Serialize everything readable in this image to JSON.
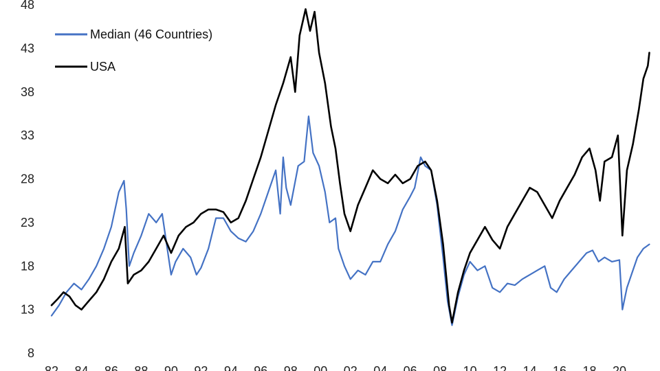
{
  "chart_data": {
    "type": "line",
    "title": "",
    "xlabel": "",
    "ylabel": "",
    "xlim": [
      1982,
      2021
    ],
    "ylim": [
      8,
      48
    ],
    "y_ticks": [
      "8",
      "13",
      "18",
      "23",
      "28",
      "33",
      "38",
      "43",
      "48"
    ],
    "x_ticks": [
      "82",
      "84",
      "86",
      "88",
      "90",
      "92",
      "94",
      "96",
      "98",
      "00",
      "02",
      "04",
      "06",
      "08",
      "10",
      "12",
      "14",
      "16",
      "18",
      "20"
    ],
    "grid": false,
    "legend": {
      "placement": "top-left"
    },
    "series": [
      {
        "name": "Median (46 Countries)",
        "color": "#4472C4",
        "points": [
          [
            1982.0,
            12.3
          ],
          [
            1982.5,
            13.5
          ],
          [
            1983.0,
            15.0
          ],
          [
            1983.5,
            16.0
          ],
          [
            1984.0,
            15.3
          ],
          [
            1984.5,
            16.5
          ],
          [
            1985.0,
            18.0
          ],
          [
            1985.5,
            20.0
          ],
          [
            1986.0,
            22.5
          ],
          [
            1986.5,
            26.5
          ],
          [
            1986.85,
            27.8
          ],
          [
            1987.0,
            24.5
          ],
          [
            1987.2,
            18.0
          ],
          [
            1987.5,
            19.5
          ],
          [
            1988.0,
            21.5
          ],
          [
            1988.5,
            24.0
          ],
          [
            1989.0,
            23.0
          ],
          [
            1989.4,
            24.0
          ],
          [
            1989.7,
            20.5
          ],
          [
            1990.0,
            17.0
          ],
          [
            1990.3,
            18.5
          ],
          [
            1990.8,
            20.0
          ],
          [
            1991.3,
            19.0
          ],
          [
            1991.7,
            17.0
          ],
          [
            1992.0,
            17.8
          ],
          [
            1992.5,
            20.0
          ],
          [
            1993.0,
            23.5
          ],
          [
            1993.5,
            23.5
          ],
          [
            1994.0,
            22.0
          ],
          [
            1994.5,
            21.2
          ],
          [
            1995.0,
            20.8
          ],
          [
            1995.5,
            22.0
          ],
          [
            1996.0,
            24.0
          ],
          [
            1996.5,
            26.5
          ],
          [
            1997.0,
            29.0
          ],
          [
            1997.3,
            24.0
          ],
          [
            1997.5,
            30.5
          ],
          [
            1997.7,
            27.0
          ],
          [
            1998.0,
            25.0
          ],
          [
            1998.5,
            29.5
          ],
          [
            1998.9,
            30.0
          ],
          [
            1999.2,
            35.2
          ],
          [
            1999.5,
            31.0
          ],
          [
            1999.9,
            29.5
          ],
          [
            2000.3,
            26.5
          ],
          [
            2000.6,
            23.0
          ],
          [
            2001.0,
            23.5
          ],
          [
            2001.2,
            20.0
          ],
          [
            2001.6,
            18.0
          ],
          [
            2002.0,
            16.5
          ],
          [
            2002.5,
            17.5
          ],
          [
            2003.0,
            17.0
          ],
          [
            2003.5,
            18.5
          ],
          [
            2004.0,
            18.5
          ],
          [
            2004.5,
            20.5
          ],
          [
            2005.0,
            22.0
          ],
          [
            2005.5,
            24.5
          ],
          [
            2006.0,
            26.0
          ],
          [
            2006.3,
            27.0
          ],
          [
            2006.7,
            30.5
          ],
          [
            2007.0,
            29.5
          ],
          [
            2007.4,
            29.0
          ],
          [
            2007.8,
            25.0
          ],
          [
            2008.2,
            19.0
          ],
          [
            2008.5,
            14.0
          ],
          [
            2008.8,
            11.2
          ],
          [
            2009.2,
            14.5
          ],
          [
            2009.6,
            17.0
          ],
          [
            2010.0,
            18.5
          ],
          [
            2010.5,
            17.5
          ],
          [
            2011.0,
            18.0
          ],
          [
            2011.5,
            15.5
          ],
          [
            2012.0,
            15.0
          ],
          [
            2012.5,
            16.0
          ],
          [
            2013.0,
            15.8
          ],
          [
            2013.5,
            16.5
          ],
          [
            2014.0,
            17.0
          ],
          [
            2014.5,
            17.5
          ],
          [
            2015.0,
            18.0
          ],
          [
            2015.4,
            15.5
          ],
          [
            2015.8,
            15.0
          ],
          [
            2016.3,
            16.5
          ],
          [
            2016.8,
            17.5
          ],
          [
            2017.3,
            18.5
          ],
          [
            2017.8,
            19.5
          ],
          [
            2018.2,
            19.8
          ],
          [
            2018.6,
            18.5
          ],
          [
            2019.0,
            19.0
          ],
          [
            2019.5,
            18.5
          ],
          [
            2020.0,
            18.7
          ],
          [
            2020.2,
            13.0
          ],
          [
            2020.5,
            15.5
          ],
          [
            2020.8,
            17.0
          ],
          [
            2021.2,
            19.0
          ],
          [
            2021.6,
            20.0
          ],
          [
            2022.0,
            20.5
          ]
        ]
      },
      {
        "name": "USA",
        "color": "#000000",
        "points": [
          [
            1982.0,
            13.5
          ],
          [
            1982.4,
            14.2
          ],
          [
            1982.8,
            15.0
          ],
          [
            1983.2,
            14.5
          ],
          [
            1983.6,
            13.5
          ],
          [
            1984.0,
            13.0
          ],
          [
            1984.5,
            14.0
          ],
          [
            1985.0,
            15.0
          ],
          [
            1985.5,
            16.5
          ],
          [
            1986.0,
            18.5
          ],
          [
            1986.5,
            20.0
          ],
          [
            1986.9,
            22.5
          ],
          [
            1987.1,
            16.0
          ],
          [
            1987.5,
            17.0
          ],
          [
            1988.0,
            17.5
          ],
          [
            1988.5,
            18.5
          ],
          [
            1989.0,
            20.0
          ],
          [
            1989.5,
            21.5
          ],
          [
            1990.0,
            19.5
          ],
          [
            1990.5,
            21.5
          ],
          [
            1991.0,
            22.5
          ],
          [
            1991.5,
            23.0
          ],
          [
            1992.0,
            24.0
          ],
          [
            1992.5,
            24.5
          ],
          [
            1993.0,
            24.5
          ],
          [
            1993.5,
            24.2
          ],
          [
            1994.0,
            23.0
          ],
          [
            1994.5,
            23.5
          ],
          [
            1995.0,
            25.5
          ],
          [
            1995.5,
            28.0
          ],
          [
            1996.0,
            30.5
          ],
          [
            1996.5,
            33.5
          ],
          [
            1997.0,
            36.5
          ],
          [
            1997.5,
            39.0
          ],
          [
            1998.0,
            42.0
          ],
          [
            1998.3,
            38.0
          ],
          [
            1998.6,
            44.5
          ],
          [
            1999.0,
            47.5
          ],
          [
            1999.3,
            45.0
          ],
          [
            1999.6,
            47.2
          ],
          [
            1999.9,
            42.5
          ],
          [
            2000.3,
            39.0
          ],
          [
            2000.7,
            34.0
          ],
          [
            2001.0,
            31.5
          ],
          [
            2001.3,
            27.5
          ],
          [
            2001.6,
            24.0
          ],
          [
            2002.0,
            22.0
          ],
          [
            2002.5,
            25.0
          ],
          [
            2003.0,
            27.0
          ],
          [
            2003.5,
            29.0
          ],
          [
            2004.0,
            28.0
          ],
          [
            2004.5,
            27.5
          ],
          [
            2005.0,
            28.5
          ],
          [
            2005.5,
            27.5
          ],
          [
            2006.0,
            28.0
          ],
          [
            2006.5,
            29.5
          ],
          [
            2007.0,
            30.0
          ],
          [
            2007.4,
            29.0
          ],
          [
            2007.8,
            25.5
          ],
          [
            2008.2,
            20.5
          ],
          [
            2008.6,
            13.5
          ],
          [
            2008.8,
            11.5
          ],
          [
            2009.2,
            15.0
          ],
          [
            2009.6,
            17.5
          ],
          [
            2010.0,
            19.5
          ],
          [
            2010.5,
            21.0
          ],
          [
            2011.0,
            22.5
          ],
          [
            2011.5,
            21.0
          ],
          [
            2012.0,
            20.0
          ],
          [
            2012.5,
            22.5
          ],
          [
            2013.0,
            24.0
          ],
          [
            2013.5,
            25.5
          ],
          [
            2014.0,
            27.0
          ],
          [
            2014.5,
            26.5
          ],
          [
            2015.0,
            25.0
          ],
          [
            2015.5,
            23.5
          ],
          [
            2016.0,
            25.5
          ],
          [
            2016.5,
            27.0
          ],
          [
            2017.0,
            28.5
          ],
          [
            2017.5,
            30.5
          ],
          [
            2018.0,
            31.5
          ],
          [
            2018.4,
            29.0
          ],
          [
            2018.7,
            25.5
          ],
          [
            2019.0,
            30.0
          ],
          [
            2019.5,
            30.5
          ],
          [
            2019.9,
            33.0
          ],
          [
            2020.2,
            21.5
          ],
          [
            2020.5,
            29.0
          ],
          [
            2020.9,
            32.0
          ],
          [
            2021.3,
            36.0
          ],
          [
            2021.6,
            39.5
          ],
          [
            2021.9,
            41.0
          ],
          [
            2022.0,
            42.5
          ]
        ]
      }
    ]
  }
}
